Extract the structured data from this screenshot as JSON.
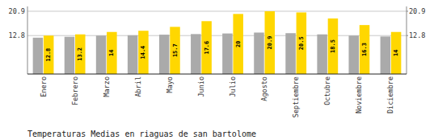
{
  "chart_data": {
    "type": "bar",
    "title": "Temperaturas Medias en riaguas de san bartolome",
    "categories": [
      "Enero",
      "Febrero",
      "Marzo",
      "Abril",
      "Mayo",
      "Junio",
      "Julio",
      "Agosto",
      "Septiembre",
      "Octubre",
      "Noviembre",
      "Diciembre"
    ],
    "series": [
      {
        "color": "#AAAAAA",
        "values": [
          12.1,
          12.4,
          12.8,
          12.9,
          13.1,
          13.3,
          13.5,
          13.8,
          13.6,
          13.2,
          12.8,
          12.5
        ]
      },
      {
        "color": "#FFD700",
        "data_labels": true,
        "values": [
          12.8,
          13.2,
          14.0,
          14.4,
          15.7,
          17.6,
          20.0,
          20.9,
          20.5,
          18.5,
          16.3,
          14.0
        ]
      }
    ],
    "ylim": [
      0,
      22.5
    ],
    "yticks": [
      12.8,
      20.9
    ],
    "y2lim": [
      0,
      22.5
    ],
    "y2ticks": [
      12.8,
      20.9
    ],
    "grid": true
  }
}
